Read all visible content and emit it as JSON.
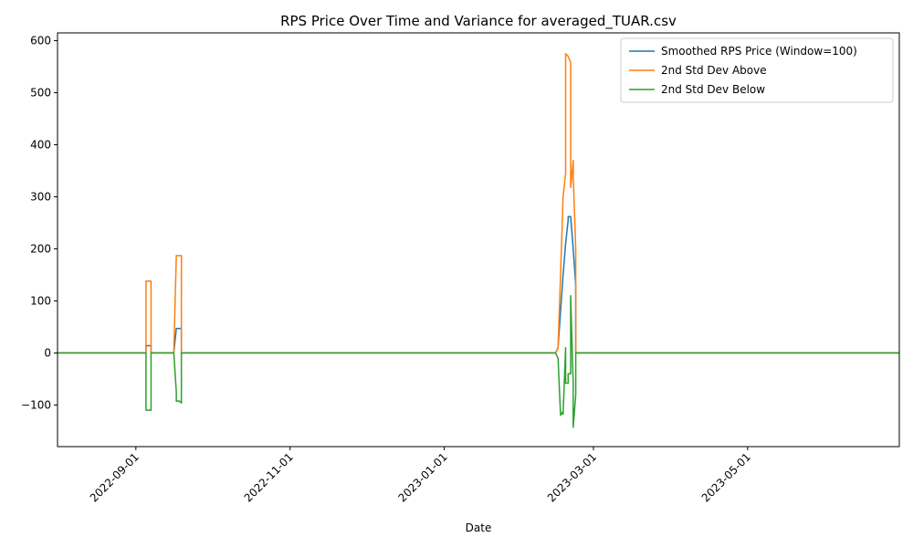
{
  "chart_data": {
    "type": "line",
    "title": "RPS Price Over Time and Variance for averaged_TUAR.csv",
    "xlabel": "Date",
    "ylabel": "",
    "x_range": [
      "2022-08-01",
      "2023-06-30"
    ],
    "ylim": [
      -180,
      615
    ],
    "x_ticks": [
      "2022-09-01",
      "2022-11-01",
      "2023-01-01",
      "2023-03-01",
      "2023-05-01"
    ],
    "y_ticks": [
      -100,
      0,
      100,
      200,
      300,
      400,
      500,
      600
    ],
    "grid": false,
    "legend_position": "top-right",
    "series": [
      {
        "name": "Smoothed RPS Price (Window=100)",
        "color": "#1f77b4",
        "points": [
          [
            "2022-08-01",
            0
          ],
          [
            "2022-09-05",
            0
          ],
          [
            "2022-09-05",
            14
          ],
          [
            "2022-09-07",
            14
          ],
          [
            "2022-09-07",
            0
          ],
          [
            "2022-09-16",
            0
          ],
          [
            "2022-09-17",
            47
          ],
          [
            "2022-09-19",
            47
          ],
          [
            "2022-09-19",
            0
          ],
          [
            "2023-02-14",
            0
          ],
          [
            "2023-02-15",
            10
          ],
          [
            "2023-02-16",
            80
          ],
          [
            "2023-02-17",
            150
          ],
          [
            "2023-02-18",
            210
          ],
          [
            "2023-02-19",
            255
          ],
          [
            "2023-02-19",
            262
          ],
          [
            "2023-02-20",
            262
          ],
          [
            "2023-02-21",
            200
          ],
          [
            "2023-02-22",
            130
          ],
          [
            "2023-02-22",
            0
          ],
          [
            "2023-06-30",
            0
          ]
        ]
      },
      {
        "name": "2nd Std Dev Above",
        "color": "#ff7f0e",
        "points": [
          [
            "2022-08-01",
            0
          ],
          [
            "2022-09-05",
            0
          ],
          [
            "2022-09-05",
            138
          ],
          [
            "2022-09-07",
            138
          ],
          [
            "2022-09-07",
            0
          ],
          [
            "2022-09-16",
            0
          ],
          [
            "2022-09-17",
            187
          ],
          [
            "2022-09-19",
            187
          ],
          [
            "2022-09-19",
            130
          ],
          [
            "2022-09-19",
            0
          ],
          [
            "2023-02-14",
            0
          ],
          [
            "2023-02-15",
            10
          ],
          [
            "2023-02-16",
            150
          ],
          [
            "2023-02-17",
            300
          ],
          [
            "2023-02-18",
            345
          ],
          [
            "2023-02-18",
            575
          ],
          [
            "2023-02-19",
            570
          ],
          [
            "2023-02-20",
            558
          ],
          [
            "2023-02-20",
            318
          ],
          [
            "2023-02-21",
            370
          ],
          [
            "2023-02-21",
            340
          ],
          [
            "2023-02-22",
            200
          ],
          [
            "2023-02-22",
            0
          ],
          [
            "2023-06-30",
            0
          ]
        ]
      },
      {
        "name": "2nd Std Dev Below",
        "color": "#2ca02c",
        "points": [
          [
            "2022-08-01",
            0
          ],
          [
            "2022-09-05",
            0
          ],
          [
            "2022-09-05",
            -110
          ],
          [
            "2022-09-07",
            -110
          ],
          [
            "2022-09-07",
            0
          ],
          [
            "2022-09-16",
            0
          ],
          [
            "2022-09-17",
            -75
          ],
          [
            "2022-09-17",
            -93
          ],
          [
            "2022-09-18",
            -92
          ],
          [
            "2022-09-19",
            -96
          ],
          [
            "2022-09-19",
            -60
          ],
          [
            "2022-09-19",
            0
          ],
          [
            "2023-02-14",
            0
          ],
          [
            "2023-02-15",
            -10
          ],
          [
            "2023-02-16",
            -120
          ],
          [
            "2023-02-17",
            -112
          ],
          [
            "2023-02-17",
            -118
          ],
          [
            "2023-02-18",
            10
          ],
          [
            "2023-02-18",
            -58
          ],
          [
            "2023-02-19",
            -58
          ],
          [
            "2023-02-19",
            -40
          ],
          [
            "2023-02-20",
            -40
          ],
          [
            "2023-02-20",
            110
          ],
          [
            "2023-02-21",
            -60
          ],
          [
            "2023-02-21",
            -143
          ],
          [
            "2023-02-22",
            -80
          ],
          [
            "2023-02-22",
            0
          ],
          [
            "2023-06-30",
            0
          ]
        ]
      }
    ]
  }
}
